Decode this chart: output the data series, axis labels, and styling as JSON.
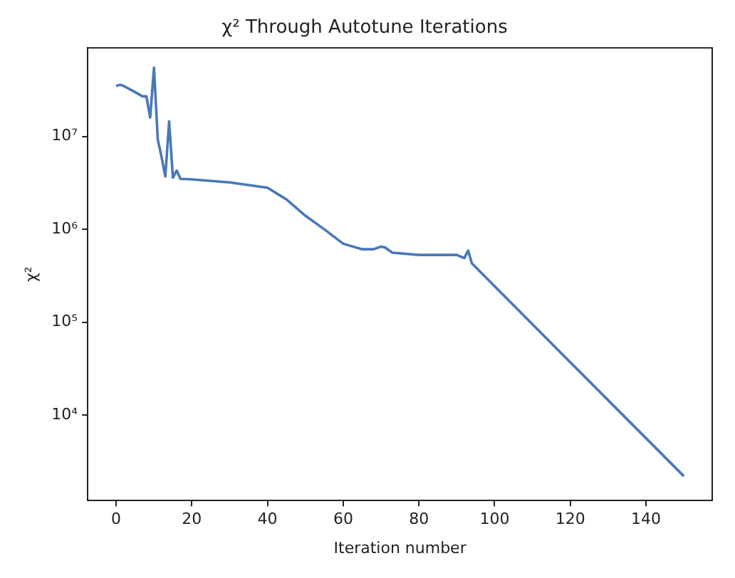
{
  "chart_data": {
    "type": "line",
    "title": "χ² Through Autotune Iterations",
    "xlabel": "Iteration number",
    "ylabel": "χ²",
    "log": "y",
    "grid": false,
    "legend": false,
    "marker": "none",
    "line_style": "solid",
    "xlim": [
      -7.5,
      157.5
    ],
    "xticks": [
      0,
      20,
      40,
      60,
      80,
      100,
      120,
      140
    ],
    "ylim": [
      1200,
      90000000
    ],
    "yticks": [
      {
        "value": 10000,
        "label": "10⁴"
      },
      {
        "value": 100000,
        "label": "10⁵"
      },
      {
        "value": 1000000,
        "label": "10⁶"
      },
      {
        "value": 10000000,
        "label": "10⁷"
      }
    ],
    "series": [
      {
        "color": "#4878b8",
        "x": [
          0,
          1,
          2,
          5,
          7,
          8,
          9,
          10,
          11,
          12,
          13,
          14,
          15,
          16,
          17,
          20,
          30,
          40,
          45,
          50,
          55,
          60,
          65,
          68,
          70,
          71,
          73,
          80,
          90,
          92,
          93,
          94,
          120,
          150
        ],
        "values": [
          35000000,
          36000000,
          35000000,
          30000000,
          27000000,
          27000000,
          16000000,
          55000000,
          9300000,
          6000000,
          3700000,
          14500000,
          3600000,
          4300000,
          3500000,
          3450000,
          3200000,
          2800000,
          2100000,
          1400000,
          1000000,
          700000,
          610000,
          610000,
          650000,
          640000,
          560000,
          530000,
          530000,
          490000,
          590000,
          430000,
          37000,
          2200
        ]
      }
    ]
  }
}
